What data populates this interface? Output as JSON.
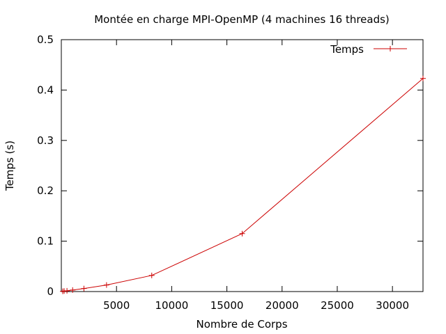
{
  "chart_data": {
    "type": "line",
    "title": "Montée en charge MPI-OpenMP (4 machines 16 threads)",
    "xlabel": "Nombre de Corps",
    "ylabel": "Temps (s)",
    "xlim": [
      0,
      32768
    ],
    "ylim": [
      0,
      0.5
    ],
    "xticks": [
      5000,
      10000,
      15000,
      20000,
      25000,
      30000
    ],
    "yticks": [
      0,
      0.1,
      0.2,
      0.3,
      0.4,
      0.5
    ],
    "legend_position": "top-right",
    "grid": false,
    "series": [
      {
        "name": "Temps",
        "color": "#cc0000",
        "marker": "plus",
        "x": [
          128,
          256,
          512,
          1024,
          2048,
          4096,
          8192,
          16384,
          32768
        ],
        "y": [
          0.0005,
          0.001,
          0.0015,
          0.003,
          0.006,
          0.013,
          0.032,
          0.115,
          0.423
        ]
      }
    ]
  }
}
